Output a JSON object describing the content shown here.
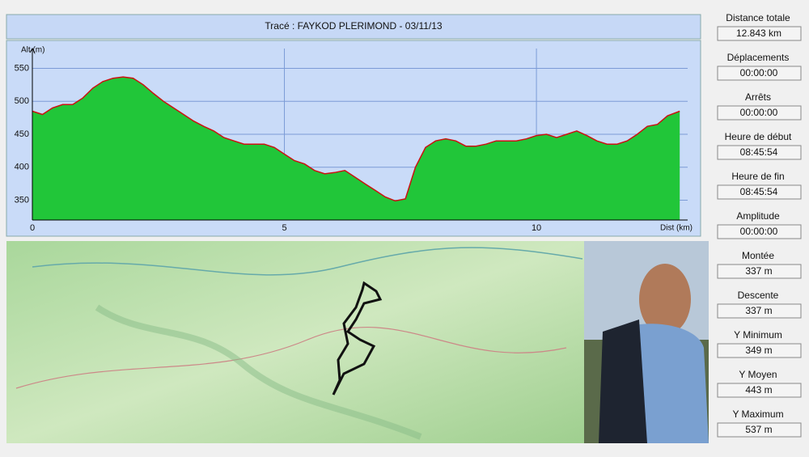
{
  "title": "Tracé : FAYKOD PLERIMOND - 03/11/13",
  "chart_data": {
    "type": "area",
    "x_label": "Dist (km)",
    "y_label": "Alt (m)",
    "x": [
      0,
      0.2,
      0.4,
      0.6,
      0.8,
      1.0,
      1.2,
      1.4,
      1.6,
      1.8,
      2.0,
      2.2,
      2.4,
      2.6,
      2.8,
      3.0,
      3.2,
      3.4,
      3.6,
      3.8,
      4.0,
      4.2,
      4.4,
      4.6,
      4.8,
      5.0,
      5.2,
      5.4,
      5.6,
      5.8,
      6.0,
      6.2,
      6.4,
      6.6,
      6.8,
      7.0,
      7.2,
      7.4,
      7.6,
      7.8,
      8.0,
      8.2,
      8.4,
      8.6,
      8.8,
      9.0,
      9.2,
      9.4,
      9.6,
      9.8,
      10.0,
      10.2,
      10.4,
      10.6,
      10.8,
      11.0,
      11.2,
      11.4,
      11.6,
      11.8,
      12.0,
      12.2,
      12.4,
      12.6,
      12.843
    ],
    "values": [
      485,
      480,
      490,
      495,
      495,
      505,
      520,
      530,
      535,
      537,
      535,
      525,
      512,
      500,
      490,
      480,
      470,
      462,
      455,
      445,
      440,
      435,
      435,
      435,
      430,
      420,
      410,
      405,
      395,
      390,
      392,
      395,
      385,
      375,
      365,
      355,
      349,
      352,
      400,
      430,
      440,
      443,
      440,
      432,
      432,
      435,
      440,
      440,
      440,
      443,
      448,
      450,
      445,
      450,
      455,
      448,
      440,
      435,
      435,
      440,
      450,
      462,
      465,
      478,
      485
    ],
    "color": "#21c639",
    "line_color": "#cc1111",
    "xlim": [
      0,
      13
    ],
    "ylim": [
      320,
      580
    ],
    "xticks": [
      0,
      5,
      10
    ],
    "yticks": [
      350,
      400,
      450,
      500,
      550
    ],
    "grid": true
  },
  "stats": [
    {
      "label": "Distance totale",
      "value": "12.843 km"
    },
    {
      "label": "Déplacements",
      "value": "00:00:00"
    },
    {
      "label": "Arrêts",
      "value": "00:00:00"
    },
    {
      "label": "Heure de début",
      "value": "08:45:54"
    },
    {
      "label": "Heure de fin",
      "value": "08:45:54"
    },
    {
      "label": "Amplitude",
      "value": "00:00:00"
    },
    {
      "label": "Montée",
      "value": "337 m"
    },
    {
      "label": "Descente",
      "value": "337 m"
    },
    {
      "label": "Y Minimum",
      "value": "349 m"
    },
    {
      "label": "Y Moyen",
      "value": "443 m"
    },
    {
      "label": "Y Maximum",
      "value": "537 m"
    }
  ]
}
